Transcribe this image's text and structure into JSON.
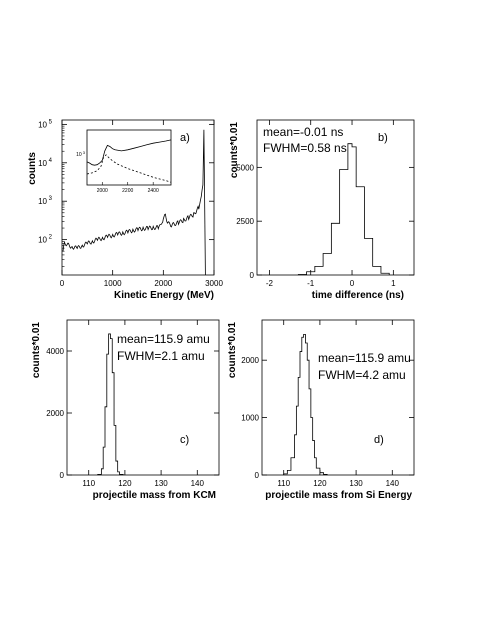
{
  "chart_data": [
    {
      "id": "a",
      "type": "histogram",
      "panel_label": "a)",
      "xlabel": "Kinetic Energy (MeV)",
      "ylabel": "counts",
      "log_y": true,
      "xlim": [
        0,
        3000
      ],
      "ylim": [
        12,
        130000
      ],
      "xticks": [
        0,
        1000,
        2000,
        3000
      ],
      "xtick_labels": [
        "0",
        "1000",
        "2000",
        "3000"
      ],
      "yticks": [
        100,
        1000,
        10000,
        100000
      ],
      "ytick_labels": [
        "10 2",
        "10 3",
        "10 4",
        "10 5"
      ],
      "x": [
        20,
        50,
        100,
        200,
        300,
        400,
        500,
        600,
        700,
        800,
        900,
        1000,
        1100,
        1200,
        1300,
        1400,
        1500,
        1600,
        1700,
        1800,
        1900,
        1960,
        2000,
        2040,
        2080,
        2120,
        2160,
        2200,
        2300,
        2400,
        2500,
        2600,
        2700,
        2750,
        2780,
        2800,
        2810,
        2830
      ],
      "y": [
        50,
        85,
        75,
        65,
        60,
        70,
        80,
        90,
        100,
        110,
        120,
        130,
        140,
        150,
        160,
        175,
        185,
        195,
        200,
        205,
        210,
        230,
        380,
        420,
        300,
        250,
        240,
        250,
        280,
        320,
        380,
        450,
        700,
        1200,
        3000,
        65000,
        5000,
        12
      ],
      "inset": {
        "xticks": [
          2000,
          2200,
          2400
        ],
        "xtick_labels": [
          "2000",
          "2200",
          "2400"
        ],
        "ytick_label": "10 3",
        "xlim": [
          1880,
          2540
        ],
        "solid_x": [
          1880,
          1900,
          1920,
          1940,
          1960,
          1980,
          2000,
          2020,
          2040,
          2060,
          2080,
          2100,
          2150,
          2200,
          2250,
          2300,
          2350,
          2400,
          2450,
          2500,
          2540
        ],
        "solid_y": [
          0.42,
          0.4,
          0.37,
          0.36,
          0.37,
          0.4,
          0.45,
          0.62,
          0.72,
          0.7,
          0.66,
          0.64,
          0.62,
          0.64,
          0.67,
          0.7,
          0.73,
          0.76,
          0.78,
          0.8,
          0.82
        ],
        "dashed_x": [
          1880,
          1920,
          1960,
          1990,
          2010,
          2030,
          2050,
          2080,
          2120,
          2200,
          2300,
          2400,
          2500,
          2540
        ],
        "dashed_y": [
          0.2,
          0.22,
          0.26,
          0.34,
          0.5,
          0.55,
          0.5,
          0.44,
          0.38,
          0.3,
          0.22,
          0.14,
          0.08,
          0.05
        ]
      }
    },
    {
      "id": "b",
      "type": "histogram",
      "panel_label": "b)",
      "xlabel": "time difference (ns)",
      "ylabel": "counts*0.01",
      "xlim": [
        -2.3,
        1.5
      ],
      "ylim": [
        0,
        7200
      ],
      "xticks": [
        -2,
        -1,
        0,
        1
      ],
      "xtick_labels": [
        "-2",
        "-1",
        "0",
        "1"
      ],
      "yticks": [
        0,
        2500,
        5000
      ],
      "ytick_labels": [
        "0",
        "2500",
        "5000"
      ],
      "annotations": [
        "mean=-0.01 ns",
        "FWHM=0.58 ns"
      ],
      "bin_edges": [
        -1.3,
        -1.1,
        -0.9,
        -0.7,
        -0.5,
        -0.3,
        -0.1,
        0.0,
        0.1,
        0.3,
        0.5,
        0.7,
        0.9
      ],
      "values": [
        20,
        150,
        400,
        1000,
        2400,
        4900,
        6100,
        5950,
        4100,
        1700,
        400,
        80
      ]
    },
    {
      "id": "c",
      "type": "histogram",
      "panel_label": "c)",
      "xlabel": "projectile mass from KCM",
      "ylabel": "counts*0.01",
      "xlim": [
        104,
        146
      ],
      "ylim": [
        0,
        5000
      ],
      "xticks": [
        110,
        120,
        130,
        140
      ],
      "xtick_labels": [
        "110",
        "120",
        "130",
        "140"
      ],
      "yticks": [
        0,
        2000,
        4000
      ],
      "ytick_labels": [
        "0",
        "2000",
        "4000"
      ],
      "annotations": [
        "mean=115.9 amu",
        "FWHM=2.1 amu"
      ],
      "bin_edges": [
        112.5,
        113.5,
        114.0,
        114.5,
        115.0,
        115.5,
        116.0,
        116.5,
        117.0,
        117.5,
        118.0,
        118.5,
        119.5
      ],
      "values": [
        20,
        200,
        900,
        2200,
        3900,
        4550,
        4400,
        3300,
        1600,
        450,
        100,
        20
      ]
    },
    {
      "id": "d",
      "type": "histogram",
      "panel_label": "d)",
      "xlabel": "projectile mass from Si Energy",
      "ylabel": "counts*0.01",
      "xlim": [
        104,
        146
      ],
      "ylim": [
        0,
        2700
      ],
      "xticks": [
        110,
        120,
        130,
        140
      ],
      "xtick_labels": [
        "110",
        "120",
        "130",
        "140"
      ],
      "yticks": [
        0,
        1000,
        2000
      ],
      "ytick_labels": [
        "0",
        "1000",
        "2000"
      ],
      "annotations": [
        "mean=115.9 amu",
        "FWHM=4.2 amu"
      ],
      "bin_edges": [
        110.0,
        111.0,
        112.0,
        113.0,
        113.5,
        114.0,
        114.5,
        115.0,
        115.5,
        116.0,
        116.5,
        117.0,
        117.5,
        118.0,
        118.5,
        119.0,
        120.0,
        121.0,
        122.0
      ],
      "values": [
        20,
        80,
        300,
        700,
        1200,
        1700,
        2150,
        2400,
        2450,
        2300,
        2000,
        1500,
        1000,
        600,
        300,
        120,
        40,
        10
      ]
    }
  ]
}
